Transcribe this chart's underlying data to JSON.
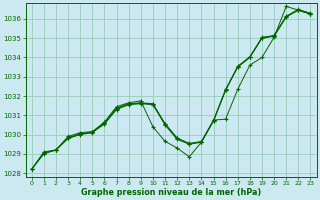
{
  "xlabel": "Graphe pression niveau de la mer (hPa)",
  "background_color": "#cce8f0",
  "grid_color": "#99ccbb",
  "line_color": "#006600",
  "xlim": [
    -0.5,
    23.5
  ],
  "ylim": [
    1027.8,
    1036.8
  ],
  "yticks": [
    1028,
    1029,
    1030,
    1031,
    1032,
    1033,
    1034,
    1035,
    1036
  ],
  "xticks": [
    0,
    1,
    2,
    3,
    4,
    5,
    6,
    7,
    8,
    9,
    10,
    11,
    12,
    13,
    14,
    15,
    16,
    17,
    18,
    19,
    20,
    21,
    22,
    23
  ],
  "series1": [
    1028.2,
    1029.0,
    1029.2,
    1029.8,
    1030.0,
    1030.1,
    1030.55,
    1031.3,
    1031.55,
    1031.6,
    1031.55,
    1030.5,
    1029.75,
    1029.5,
    1029.6,
    1030.7,
    1032.3,
    1033.5,
    1034.0,
    1035.0,
    1035.1,
    1036.1,
    1036.45,
    1036.25
  ],
  "series2": [
    1028.2,
    1029.05,
    1029.2,
    1029.82,
    1030.02,
    1030.12,
    1030.57,
    1031.35,
    1031.58,
    1031.63,
    1031.58,
    1030.55,
    1029.8,
    1029.52,
    1029.62,
    1030.72,
    1032.32,
    1033.52,
    1034.02,
    1035.02,
    1035.12,
    1036.12,
    1036.47,
    1036.27
  ],
  "series3": [
    1028.2,
    1029.05,
    1029.2,
    1029.84,
    1030.04,
    1030.14,
    1030.59,
    1031.37,
    1031.6,
    1031.65,
    1031.6,
    1030.57,
    1029.82,
    1029.54,
    1029.64,
    1030.74,
    1032.34,
    1033.54,
    1034.04,
    1035.04,
    1035.14,
    1036.14,
    1036.49,
    1036.29
  ],
  "series_main": [
    1028.2,
    1029.1,
    1029.2,
    1029.9,
    1030.1,
    1030.15,
    1030.65,
    1031.45,
    1031.65,
    1031.75,
    1030.4,
    1029.65,
    1029.3,
    1028.85,
    1029.6,
    1030.75,
    1030.8,
    1032.35,
    1033.6,
    1034.0,
    1035.05,
    1036.65,
    1036.45,
    1036.25
  ]
}
